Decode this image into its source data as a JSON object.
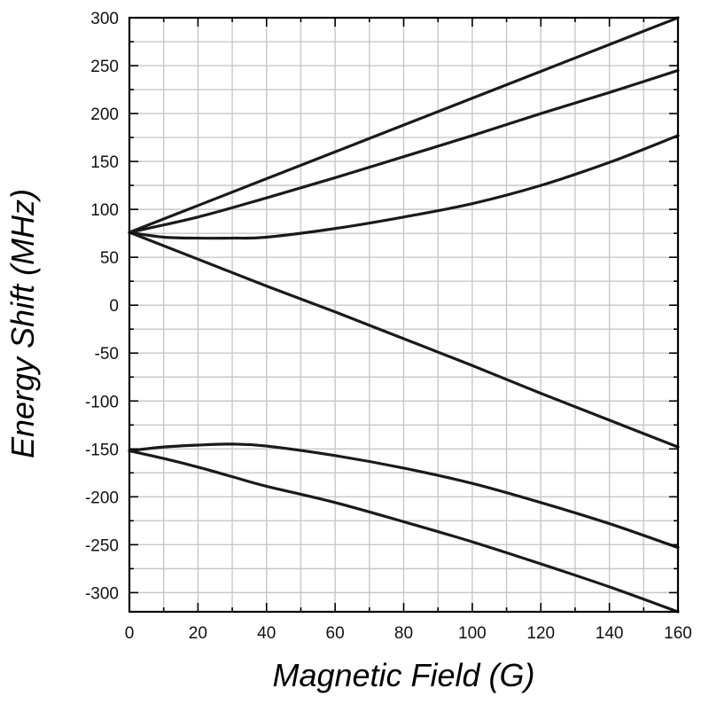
{
  "chart_data": {
    "type": "line",
    "xlabel": "Magnetic Field (G)",
    "ylabel": "Energy Shift (MHz)",
    "xlim": [
      0,
      160
    ],
    "ylim": [
      -320,
      300
    ],
    "xticks": [
      0,
      20,
      40,
      60,
      80,
      100,
      120,
      140,
      160
    ],
    "yticks": [
      300,
      250,
      200,
      150,
      100,
      50,
      0,
      -50,
      -100,
      -150,
      -200,
      -250,
      -300
    ],
    "xtick_labels": [
      "0",
      "20",
      "40",
      "60",
      "80",
      "100",
      "120",
      "140",
      "160"
    ],
    "ytick_labels": [
      "300",
      "250",
      "200",
      "150",
      "100",
      "50",
      "0",
      "-50",
      "-100",
      "-150",
      "-200",
      "-250",
      "-300"
    ],
    "x_minor_step": 10,
    "y_minor_step": 25,
    "grid": true,
    "line_color": "#1a1a1a",
    "series": [
      {
        "x": [
          0,
          20,
          40,
          60,
          80,
          100,
          120,
          140,
          160
        ],
        "y": [
          76,
          104,
          132,
          160,
          188,
          216,
          244,
          272,
          300
        ]
      },
      {
        "x": [
          0,
          20,
          40,
          60,
          80,
          100,
          120,
          140,
          160
        ],
        "y": [
          76,
          92,
          112,
          133,
          155,
          177,
          200,
          222,
          245
        ]
      },
      {
        "x": [
          0,
          10,
          20,
          30,
          40,
          60,
          80,
          100,
          120,
          140,
          160
        ],
        "y": [
          76,
          71,
          70,
          70,
          71,
          80,
          92,
          106,
          125,
          149,
          177
        ]
      },
      {
        "x": [
          0,
          20,
          40,
          60,
          80,
          100,
          120,
          140,
          160
        ],
        "y": [
          76,
          48,
          20,
          -7,
          -35,
          -63,
          -92,
          -120,
          -148
        ]
      },
      {
        "x": [
          0,
          10,
          20,
          30,
          40,
          60,
          80,
          100,
          120,
          140,
          160
        ],
        "y": [
          -152,
          -148,
          -146,
          -145,
          -147,
          -157,
          -170,
          -186,
          -206,
          -228,
          -253
        ]
      },
      {
        "x": [
          0,
          10,
          20,
          30,
          40,
          60,
          80,
          100,
          120,
          140,
          160
        ],
        "y": [
          -152,
          -160,
          -169,
          -179,
          -189,
          -206,
          -226,
          -247,
          -270,
          -294,
          -320
        ]
      }
    ]
  }
}
